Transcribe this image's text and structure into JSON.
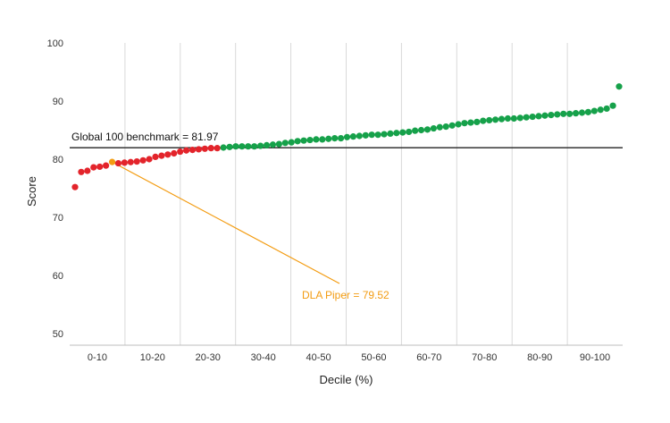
{
  "chart_data": {
    "type": "scatter",
    "xlabel": "Decile (%)",
    "ylabel": "Score",
    "ylim": [
      48,
      100
    ],
    "y_ticks": [
      50,
      60,
      70,
      80,
      90,
      100
    ],
    "categories": [
      "0-10",
      "10-20",
      "20-30",
      "30-40",
      "40-50",
      "50-60",
      "60-70",
      "70-80",
      "80-90",
      "90-100"
    ],
    "grid": "vertical",
    "colors": {
      "below": "#e3242b",
      "above": "#16a14a",
      "highlight": "#f39c12",
      "benchmark": "#222222",
      "grid": "#d9d9d9"
    },
    "benchmark": {
      "label": "Global 100 benchmark = 81.97",
      "value": 81.97
    },
    "highlight": {
      "label": "DLA Piper = 79.52",
      "rank": 7,
      "value": 79.52
    },
    "points": [
      {
        "rank": 1,
        "value": 75.2
      },
      {
        "rank": 2,
        "value": 77.8
      },
      {
        "rank": 3,
        "value": 78.0
      },
      {
        "rank": 4,
        "value": 78.6
      },
      {
        "rank": 5,
        "value": 78.7
      },
      {
        "rank": 6,
        "value": 78.9
      },
      {
        "rank": 7,
        "value": 79.52
      },
      {
        "rank": 8,
        "value": 79.3
      },
      {
        "rank": 9,
        "value": 79.4
      },
      {
        "rank": 10,
        "value": 79.5
      },
      {
        "rank": 11,
        "value": 79.6
      },
      {
        "rank": 12,
        "value": 79.8
      },
      {
        "rank": 13,
        "value": 80.0
      },
      {
        "rank": 14,
        "value": 80.4
      },
      {
        "rank": 15,
        "value": 80.6
      },
      {
        "rank": 16,
        "value": 80.8
      },
      {
        "rank": 17,
        "value": 81.0
      },
      {
        "rank": 18,
        "value": 81.3
      },
      {
        "rank": 19,
        "value": 81.5
      },
      {
        "rank": 20,
        "value": 81.6
      },
      {
        "rank": 21,
        "value": 81.7
      },
      {
        "rank": 22,
        "value": 81.8
      },
      {
        "rank": 23,
        "value": 81.9
      },
      {
        "rank": 24,
        "value": 81.9
      },
      {
        "rank": 25,
        "value": 82.0
      },
      {
        "rank": 26,
        "value": 82.1
      },
      {
        "rank": 27,
        "value": 82.2
      },
      {
        "rank": 28,
        "value": 82.2
      },
      {
        "rank": 29,
        "value": 82.2
      },
      {
        "rank": 30,
        "value": 82.2
      },
      {
        "rank": 31,
        "value": 82.3
      },
      {
        "rank": 32,
        "value": 82.4
      },
      {
        "rank": 33,
        "value": 82.5
      },
      {
        "rank": 34,
        "value": 82.6
      },
      {
        "rank": 35,
        "value": 82.8
      },
      {
        "rank": 36,
        "value": 82.9
      },
      {
        "rank": 37,
        "value": 83.1
      },
      {
        "rank": 38,
        "value": 83.2
      },
      {
        "rank": 39,
        "value": 83.3
      },
      {
        "rank": 40,
        "value": 83.4
      },
      {
        "rank": 41,
        "value": 83.4
      },
      {
        "rank": 42,
        "value": 83.5
      },
      {
        "rank": 43,
        "value": 83.6
      },
      {
        "rank": 44,
        "value": 83.6
      },
      {
        "rank": 45,
        "value": 83.8
      },
      {
        "rank": 46,
        "value": 83.9
      },
      {
        "rank": 47,
        "value": 84.0
      },
      {
        "rank": 48,
        "value": 84.1
      },
      {
        "rank": 49,
        "value": 84.2
      },
      {
        "rank": 50,
        "value": 84.2
      },
      {
        "rank": 51,
        "value": 84.3
      },
      {
        "rank": 52,
        "value": 84.4
      },
      {
        "rank": 53,
        "value": 84.5
      },
      {
        "rank": 54,
        "value": 84.6
      },
      {
        "rank": 55,
        "value": 84.7
      },
      {
        "rank": 56,
        "value": 84.9
      },
      {
        "rank": 57,
        "value": 85.0
      },
      {
        "rank": 58,
        "value": 85.1
      },
      {
        "rank": 59,
        "value": 85.3
      },
      {
        "rank": 60,
        "value": 85.5
      },
      {
        "rank": 61,
        "value": 85.6
      },
      {
        "rank": 62,
        "value": 85.8
      },
      {
        "rank": 63,
        "value": 86.0
      },
      {
        "rank": 64,
        "value": 86.2
      },
      {
        "rank": 65,
        "value": 86.3
      },
      {
        "rank": 66,
        "value": 86.4
      },
      {
        "rank": 67,
        "value": 86.6
      },
      {
        "rank": 68,
        "value": 86.7
      },
      {
        "rank": 69,
        "value": 86.8
      },
      {
        "rank": 70,
        "value": 86.9
      },
      {
        "rank": 71,
        "value": 87.0
      },
      {
        "rank": 72,
        "value": 87.0
      },
      {
        "rank": 73,
        "value": 87.1
      },
      {
        "rank": 74,
        "value": 87.2
      },
      {
        "rank": 75,
        "value": 87.3
      },
      {
        "rank": 76,
        "value": 87.4
      },
      {
        "rank": 77,
        "value": 87.5
      },
      {
        "rank": 78,
        "value": 87.6
      },
      {
        "rank": 79,
        "value": 87.7
      },
      {
        "rank": 80,
        "value": 87.8
      },
      {
        "rank": 81,
        "value": 87.8
      },
      {
        "rank": 82,
        "value": 87.9
      },
      {
        "rank": 83,
        "value": 88.0
      },
      {
        "rank": 84,
        "value": 88.1
      },
      {
        "rank": 85,
        "value": 88.3
      },
      {
        "rank": 86,
        "value": 88.5
      },
      {
        "rank": 87,
        "value": 88.7
      },
      {
        "rank": 88,
        "value": 89.2
      },
      {
        "rank": 89,
        "value": 92.5
      }
    ]
  }
}
